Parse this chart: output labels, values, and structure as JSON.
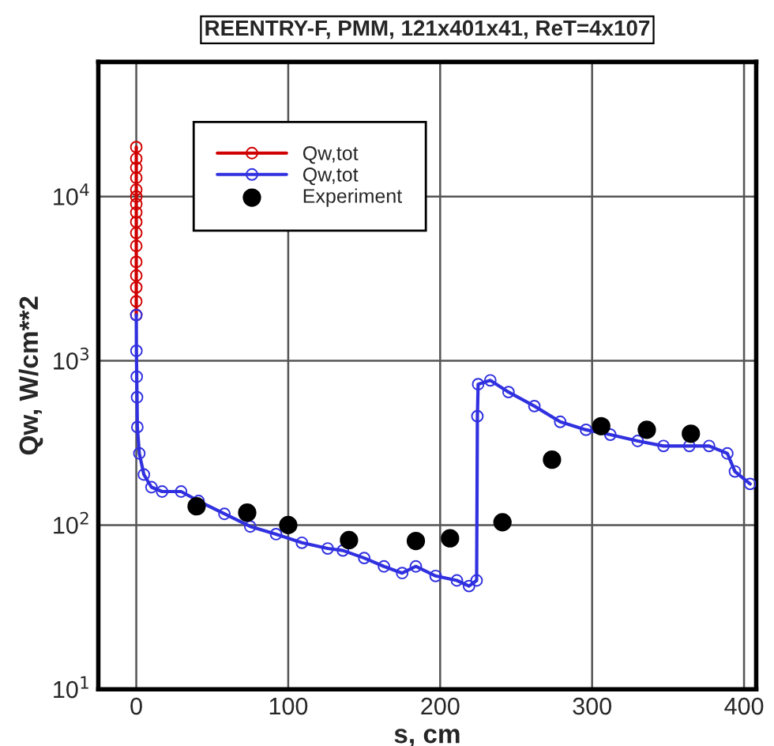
{
  "chart_data": {
    "type": "line",
    "title": "REENTRY-F, PMM, 121x401x41, ReT=4x107",
    "xlabel": "s, cm",
    "ylabel": "Qw, W/cm**2",
    "log": "y",
    "xlim": [
      -25,
      408
    ],
    "xticks": [
      0,
      100,
      200,
      300,
      400
    ],
    "ylim": [
      10,
      66000
    ],
    "yticks": [
      {
        "value": 10,
        "label": "10$^{1}$"
      },
      {
        "value": 100,
        "label": "10$^{2}$"
      },
      {
        "value": 1000,
        "label": "10$^{3}$"
      },
      {
        "value": 10000,
        "label": "10$^{4}$"
      }
    ],
    "grid": true,
    "legend": "top left",
    "marker": "circle",
    "series": [
      {
        "name": "Qw,tot",
        "color": "#d00000",
        "x": [
          0,
          0,
          0,
          0,
          0,
          0,
          0,
          0,
          0,
          0,
          0,
          0,
          0,
          0,
          0,
          0
        ],
        "values": [
          20000,
          17000,
          15000,
          13000,
          11000,
          10000,
          9000,
          8000,
          7000,
          6000,
          5000,
          4000,
          3300,
          2800,
          2300,
          1900
        ]
      },
      {
        "name": "Qw,tot",
        "color": "#3030e0",
        "x": [
          0,
          0.1,
          0.3,
          0.5,
          0.7,
          2,
          5,
          10,
          17,
          29.5,
          41,
          58,
          75,
          92,
          109,
          126,
          136,
          150,
          163,
          175,
          184,
          197,
          211,
          219,
          224,
          224.5,
          225,
          233,
          245,
          262,
          279,
          296,
          312,
          330,
          347,
          364,
          377,
          389,
          394,
          404
        ],
        "values": [
          1900,
          1150,
          800,
          600,
          395,
          273,
          203,
          170,
          160,
          160,
          140,
          117,
          98,
          88,
          78,
          72,
          70,
          63,
          56,
          51,
          56,
          49,
          46,
          42.5,
          46,
          460,
          720,
          760,
          645,
          530,
          425,
          380,
          355,
          325,
          303,
          303,
          303,
          273,
          212,
          178
        ]
      },
      {
        "name": "Experiment",
        "type": "scatter",
        "color": "#000000",
        "x": [
          39.7,
          73,
          100,
          140,
          184,
          206.5,
          241,
          273.6,
          306,
          336,
          365
        ],
        "values": [
          130,
          119,
          100,
          81,
          80,
          83,
          104,
          250,
          400,
          380,
          360
        ]
      }
    ]
  }
}
